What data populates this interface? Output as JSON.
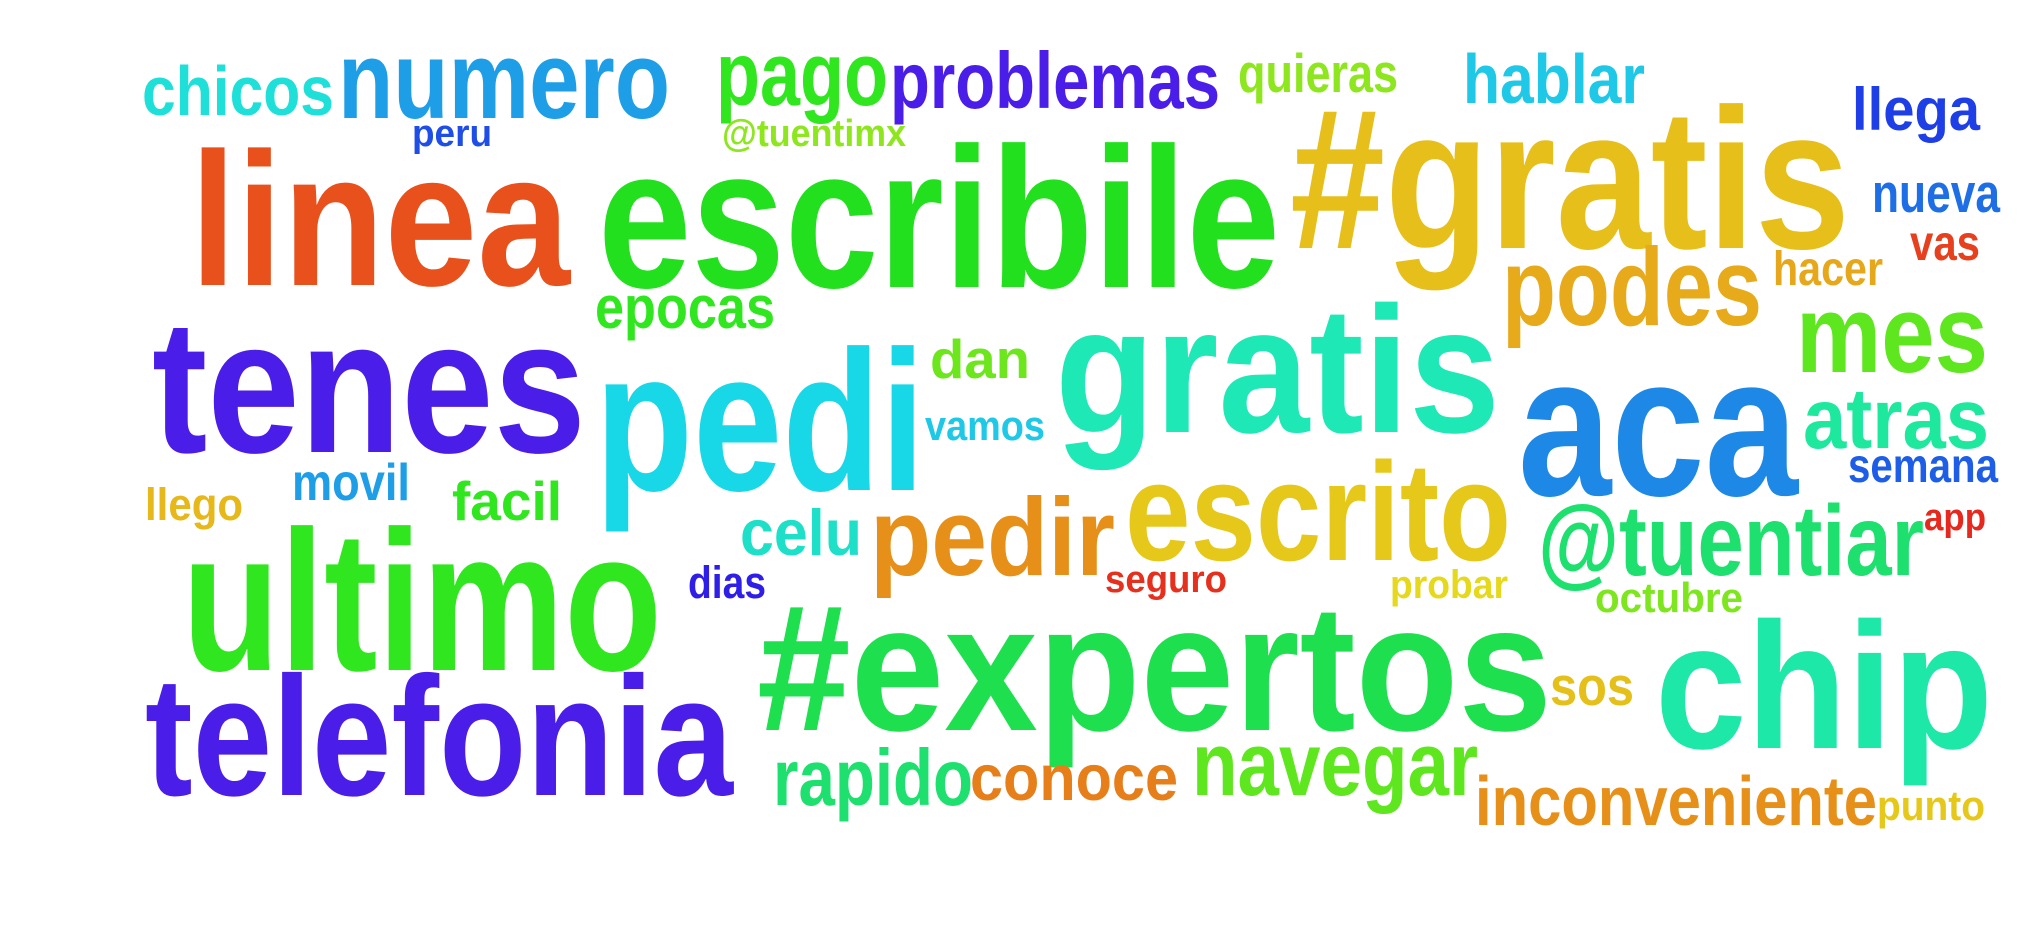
{
  "words": [
    {
      "text": "#gratis",
      "color": "#e6bf1a"
    },
    {
      "text": "escribile",
      "color": "#22e01e"
    },
    {
      "text": "linea",
      "color": "#e8501c"
    },
    {
      "text": "tenes",
      "color": "#4a1ee8"
    },
    {
      "text": "pedi",
      "color": "#18d8e8"
    },
    {
      "text": "gratis",
      "color": "#1ee8b6"
    },
    {
      "text": "aca",
      "color": "#1e88e6"
    },
    {
      "text": "ultimo",
      "color": "#30e61e"
    },
    {
      "text": "telefonia",
      "color": "#4a1ee8"
    },
    {
      "text": "#expertos",
      "color": "#1ee04e"
    },
    {
      "text": "chip",
      "color": "#1ee8a8"
    },
    {
      "text": "escrito",
      "color": "#e6c81a"
    },
    {
      "text": "pedir",
      "color": "#e6901a"
    },
    {
      "text": "@tuentiar",
      "color": "#1ee06e"
    },
    {
      "text": "numero",
      "color": "#1e9ee6"
    },
    {
      "text": "pago",
      "color": "#30e61e"
    },
    {
      "text": "problemas",
      "color": "#4a1ee8"
    },
    {
      "text": "podes",
      "color": "#e6aa1a"
    },
    {
      "text": "mes",
      "color": "#5ee61e"
    },
    {
      "text": "navegar",
      "color": "#5ee61e"
    },
    {
      "text": "inconveniente",
      "color": "#e6901a"
    },
    {
      "text": "chicos",
      "color": "#1ee0d8"
    },
    {
      "text": "hablar",
      "color": "#1ec8e6"
    },
    {
      "text": "llega",
      "color": "#1e3ee6"
    },
    {
      "text": "nueva",
      "color": "#1e6ee6"
    },
    {
      "text": "atras",
      "color": "#1ee89e"
    },
    {
      "text": "conoce",
      "color": "#e67e1a"
    },
    {
      "text": "rapido",
      "color": "#1ee06e"
    },
    {
      "text": "epocas",
      "color": "#30e61e"
    },
    {
      "text": "celu",
      "color": "#1ee0c8"
    },
    {
      "text": "quieras",
      "color": "#8ee61e"
    },
    {
      "text": "hacer",
      "color": "#e6a81a"
    },
    {
      "text": "vas",
      "color": "#e6401e"
    },
    {
      "text": "dan",
      "color": "#6ee61e"
    },
    {
      "text": "facil",
      "color": "#30e61e"
    },
    {
      "text": "movil",
      "color": "#1e9ee6"
    },
    {
      "text": "semana",
      "color": "#1e5ee6"
    },
    {
      "text": "sos",
      "color": "#e6c01a"
    },
    {
      "text": "@tuentimx",
      "color": "#8ee61e"
    },
    {
      "text": "peru",
      "color": "#1e4ee6"
    },
    {
      "text": "vamos",
      "color": "#1ec8e6"
    },
    {
      "text": "llego",
      "color": "#e6b81a"
    },
    {
      "text": "dias",
      "color": "#2e1ee6"
    },
    {
      "text": "seguro",
      "color": "#e6301e"
    },
    {
      "text": "probar",
      "color": "#e6d81a"
    },
    {
      "text": "octubre",
      "color": "#7ee61e"
    },
    {
      "text": "app",
      "color": "#e6281e"
    },
    {
      "text": "punto",
      "color": "#e6c81a"
    }
  ]
}
